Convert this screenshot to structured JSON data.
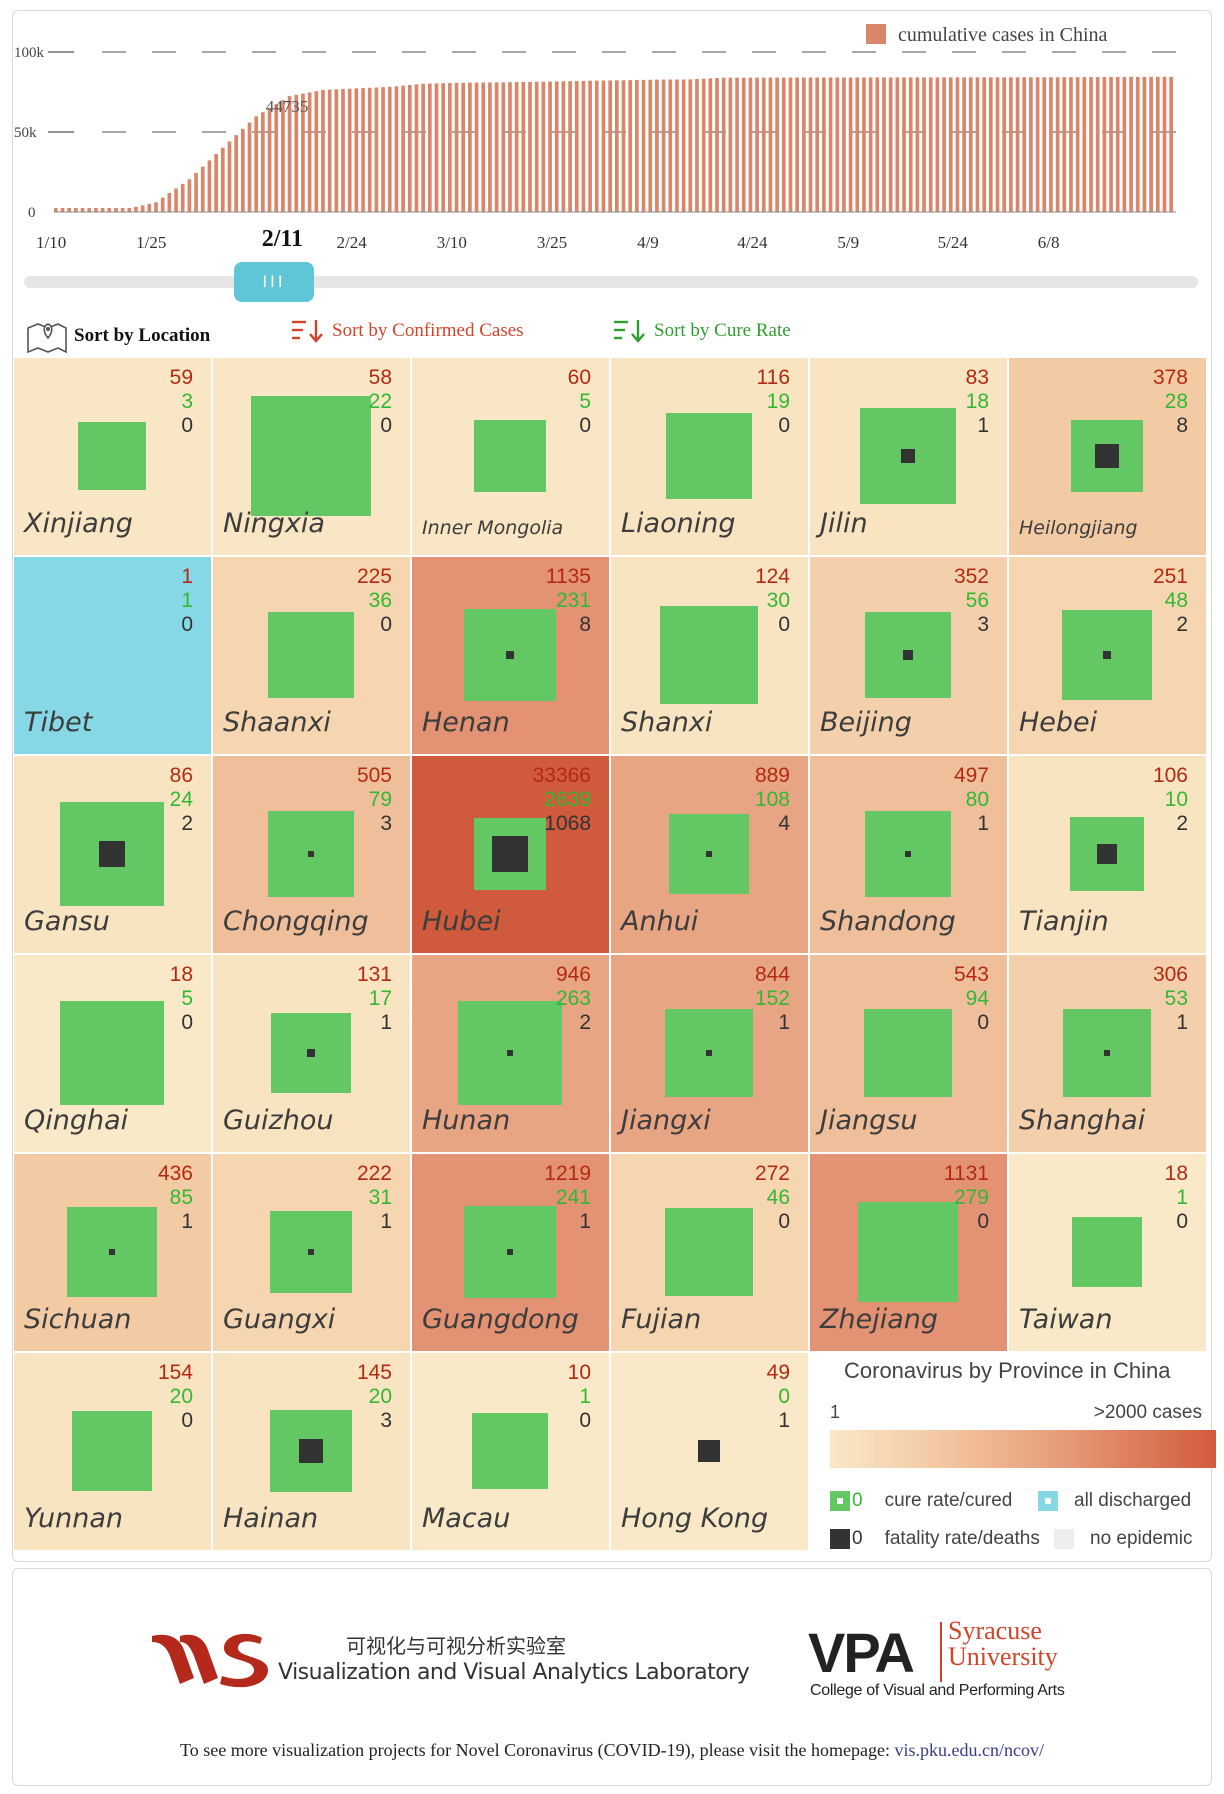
{
  "chart_data": {
    "type": "bar",
    "legend": "cumulative cases in China",
    "ytick_labels": [
      "100k",
      "50k",
      "0"
    ],
    "ylim": [
      0,
      100000
    ],
    "xtick_labels": [
      "1/10",
      "1/25",
      "2/11",
      "2/24",
      "3/10",
      "3/25",
      "4/9",
      "4/24",
      "5/9",
      "5/24",
      "6/8"
    ],
    "selected_date": "2/11",
    "selected_value_label": "44735",
    "n_days": 168,
    "values_sampled_every_5_days_from_1_10": [
      41,
      45,
      1287,
      6087,
      20471,
      40171,
      59804,
      72436,
      76288,
      77262,
      78190,
      80151,
      80735,
      80977,
      81250,
      81620,
      82052,
      82341,
      82735,
      82874,
      83959,
      83990,
      84010,
      84054,
      84102,
      84116,
      84123,
      84147,
      84177,
      84199,
      84228,
      84335,
      84458,
      84494
    ],
    "color": "#d9866a"
  },
  "slider": {
    "selected_index": 32,
    "handle_glyph": "III"
  },
  "sort": {
    "location": "Sort by Location",
    "confirmed": "Sort by Confirmed Cases",
    "cure": "Sort by Cure Rate"
  },
  "colors": {
    "cure": "#63c863",
    "death": "#333333",
    "discharged": "#87d8e6",
    "confirmed_text": "#b22a12",
    "cured_text": "#33b833"
  },
  "provinces": [
    {
      "name": "Xinjiang",
      "confirmed": "59",
      "cured": "3",
      "deaths": "0",
      "cure_rate": 0.05,
      "fatality_rate": 0,
      "fill": "#f8e6c4"
    },
    {
      "name": "Ningxia",
      "confirmed": "58",
      "cured": "22",
      "deaths": "0",
      "cure_rate": 0.38,
      "fatality_rate": 0,
      "fill": "#f8e6c4"
    },
    {
      "name": "Inner Mongolia",
      "confirmed": "60",
      "cured": "5",
      "deaths": "0",
      "cure_rate": 0.08,
      "fatality_rate": 0,
      "fill": "#f8e6c4"
    },
    {
      "name": "Liaoning",
      "confirmed": "116",
      "cured": "19",
      "deaths": "0",
      "cure_rate": 0.16,
      "fatality_rate": 0,
      "fill": "#f8e4c1"
    },
    {
      "name": "Jilin",
      "confirmed": "83",
      "cured": "18",
      "deaths": "1",
      "cure_rate": 0.22,
      "fatality_rate": 0.012,
      "fill": "#f8e4c1"
    },
    {
      "name": "Heilongjiang",
      "confirmed": "378",
      "cured": "28",
      "deaths": "8",
      "cure_rate": 0.07,
      "fatality_rate": 0.021,
      "fill": "#f2cba5"
    },
    {
      "name": "Tibet",
      "confirmed": "1",
      "cured": "1",
      "deaths": "0",
      "cure_rate": 1,
      "fatality_rate": 0,
      "fill": "#86d8e6",
      "discharged": true
    },
    {
      "name": "Shaanxi",
      "confirmed": "225",
      "cured": "36",
      "deaths": "0",
      "cure_rate": 0.16,
      "fatality_rate": 0,
      "fill": "#f5d6b1"
    },
    {
      "name": "Henan",
      "confirmed": "1135",
      "cured": "231",
      "deaths": "8",
      "cure_rate": 0.2,
      "fatality_rate": 0.007,
      "fill": "#e39373"
    },
    {
      "name": "Shanxi",
      "confirmed": "124",
      "cured": "30",
      "deaths": "0",
      "cure_rate": 0.24,
      "fatality_rate": 0,
      "fill": "#f8e4c1"
    },
    {
      "name": "Beijing",
      "confirmed": "352",
      "cured": "56",
      "deaths": "3",
      "cure_rate": 0.16,
      "fatality_rate": 0.009,
      "fill": "#f3d0ab"
    },
    {
      "name": "Hebei",
      "confirmed": "251",
      "cured": "48",
      "deaths": "2",
      "cure_rate": 0.19,
      "fatality_rate": 0.008,
      "fill": "#f5d6b1"
    },
    {
      "name": "Gansu",
      "confirmed": "86",
      "cured": "24",
      "deaths": "2",
      "cure_rate": 0.28,
      "fatality_rate": 0.023,
      "fill": "#f8e4c1"
    },
    {
      "name": "Chongqing",
      "confirmed": "505",
      "cured": "79",
      "deaths": "3",
      "cure_rate": 0.16,
      "fatality_rate": 0.006,
      "fill": "#efbf9b"
    },
    {
      "name": "Hubei",
      "confirmed": "33366",
      "cured": "2639",
      "deaths": "1068",
      "cure_rate": 0.08,
      "fatality_rate": 0.032,
      "fill": "#d05a3c"
    },
    {
      "name": "Anhui",
      "confirmed": "889",
      "cured": "108",
      "deaths": "4",
      "cure_rate": 0.12,
      "fatality_rate": 0.0045,
      "fill": "#e8a584"
    },
    {
      "name": "Shandong",
      "confirmed": "497",
      "cured": "80",
      "deaths": "1",
      "cure_rate": 0.16,
      "fatality_rate": 0.002,
      "fill": "#efbf9b"
    },
    {
      "name": "Tianjin",
      "confirmed": "106",
      "cured": "10",
      "deaths": "2",
      "cure_rate": 0.09,
      "fatality_rate": 0.019,
      "fill": "#f8e4c1"
    },
    {
      "name": "Qinghai",
      "confirmed": "18",
      "cured": "5",
      "deaths": "0",
      "cure_rate": 0.28,
      "fatality_rate": 0,
      "fill": "#f9e9c8"
    },
    {
      "name": "Guizhou",
      "confirmed": "131",
      "cured": "17",
      "deaths": "1",
      "cure_rate": 0.13,
      "fatality_rate": 0.008,
      "fill": "#f8e4c1"
    },
    {
      "name": "Hunan",
      "confirmed": "946",
      "cured": "263",
      "deaths": "2",
      "cure_rate": 0.28,
      "fatality_rate": 0.002,
      "fill": "#e8a584"
    },
    {
      "name": "Jiangxi",
      "confirmed": "844",
      "cured": "152",
      "deaths": "1",
      "cure_rate": 0.18,
      "fatality_rate": 0.0012,
      "fill": "#e8a584"
    },
    {
      "name": "Jiangsu",
      "confirmed": "543",
      "cured": "94",
      "deaths": "0",
      "cure_rate": 0.17,
      "fatality_rate": 0,
      "fill": "#efbf9b"
    },
    {
      "name": "Shanghai",
      "confirmed": "306",
      "cured": "53",
      "deaths": "1",
      "cure_rate": 0.17,
      "fatality_rate": 0.003,
      "fill": "#f3d0ab"
    },
    {
      "name": "Sichuan",
      "confirmed": "436",
      "cured": "85",
      "deaths": "1",
      "cure_rate": 0.19,
      "fatality_rate": 0.0023,
      "fill": "#f2cba5"
    },
    {
      "name": "Guangxi",
      "confirmed": "222",
      "cured": "31",
      "deaths": "1",
      "cure_rate": 0.14,
      "fatality_rate": 0.0045,
      "fill": "#f5d6b1"
    },
    {
      "name": "Guangdong",
      "confirmed": "1219",
      "cured": "241",
      "deaths": "1",
      "cure_rate": 0.2,
      "fatality_rate": 0.0008,
      "fill": "#e39373"
    },
    {
      "name": "Fujian",
      "confirmed": "272",
      "cured": "46",
      "deaths": "0",
      "cure_rate": 0.17,
      "fatality_rate": 0,
      "fill": "#f5d6b1"
    },
    {
      "name": "Zhejiang",
      "confirmed": "1131",
      "cured": "279",
      "deaths": "0",
      "cure_rate": 0.25,
      "fatality_rate": 0,
      "fill": "#e39373"
    },
    {
      "name": "Taiwan",
      "confirmed": "18",
      "cured": "1",
      "deaths": "0",
      "cure_rate": 0.06,
      "fatality_rate": 0,
      "fill": "#f9e9c8"
    },
    {
      "name": "Yunnan",
      "confirmed": "154",
      "cured": "20",
      "deaths": "0",
      "cure_rate": 0.13,
      "fatality_rate": 0,
      "fill": "#f8e4c1"
    },
    {
      "name": "Hainan",
      "confirmed": "145",
      "cured": "20",
      "deaths": "3",
      "cure_rate": 0.14,
      "fatality_rate": 0.021,
      "fill": "#f8e4c1"
    },
    {
      "name": "Macau",
      "confirmed": "10",
      "cured": "1",
      "deaths": "0",
      "cure_rate": 0.1,
      "fatality_rate": 0,
      "fill": "#f9e9c8"
    },
    {
      "name": "Hong Kong",
      "confirmed": "49",
      "cured": "0",
      "deaths": "1",
      "cure_rate": 0,
      "fatality_rate": 0.02,
      "fill": "#f9e9c8"
    }
  ],
  "legend": {
    "title": "Coronavirus by Province in China",
    "min": "1",
    "max": ">2000 cases",
    "zero1": "0",
    "zero2": "0",
    "cure": "cure rate/cured",
    "discharged": "all discharged",
    "fatality": "fatality rate/deaths",
    "none": "no epidemic"
  },
  "footer": {
    "lab_cn": "可视化与可视分析实验室",
    "lab_en": "Visualization and Visual Analytics Laboratory",
    "vpa": "VPA",
    "su_line1": "Syracuse",
    "su_line2": "University",
    "college": "College of Visual and Performing Arts",
    "note": "To see more visualization projects for Novel Coronavirus (COVID-19), please visit the homepage:",
    "link": "vis.pku.edu.cn/ncov/"
  }
}
